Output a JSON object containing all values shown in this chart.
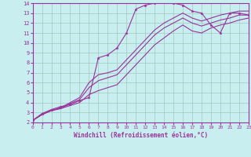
{
  "title": "",
  "xlabel": "Windchill (Refroidissement éolien,°C)",
  "ylabel": "",
  "xlim": [
    0,
    23
  ],
  "ylim": [
    2,
    14
  ],
  "xticks": [
    0,
    1,
    2,
    3,
    4,
    5,
    6,
    7,
    8,
    9,
    10,
    11,
    12,
    13,
    14,
    15,
    16,
    17,
    18,
    19,
    20,
    21,
    22,
    23
  ],
  "yticks": [
    2,
    3,
    4,
    5,
    6,
    7,
    8,
    9,
    10,
    11,
    12,
    13,
    14
  ],
  "bg_color": "#c8eef0",
  "line_color": "#993399",
  "grid_color": "#a0c8c0",
  "line1_x": [
    0,
    1,
    2,
    3,
    4,
    5,
    6,
    7,
    8,
    9,
    10,
    11,
    12,
    13,
    14,
    15,
    16,
    17,
    18,
    19,
    20,
    21,
    22,
    23
  ],
  "line1_y": [
    2.2,
    2.9,
    3.3,
    3.6,
    3.8,
    4.2,
    4.5,
    8.5,
    8.8,
    9.5,
    11.0,
    13.4,
    13.8,
    14.0,
    14.2,
    14.0,
    13.8,
    13.2,
    13.0,
    11.8,
    11.0,
    13.0,
    13.0,
    12.8
  ],
  "line2_x": [
    0,
    1,
    2,
    3,
    4,
    5,
    6,
    7,
    8,
    9,
    10,
    11,
    12,
    13,
    14,
    15,
    16,
    17,
    18,
    19,
    20,
    21,
    22,
    23
  ],
  "line2_y": [
    2.2,
    2.8,
    3.2,
    3.4,
    3.7,
    4.0,
    4.8,
    5.2,
    5.5,
    5.8,
    6.8,
    7.8,
    8.8,
    9.8,
    10.5,
    11.2,
    11.8,
    11.2,
    11.0,
    11.5,
    11.8,
    12.0,
    12.3,
    12.5
  ],
  "line3_x": [
    0,
    1,
    2,
    3,
    4,
    5,
    6,
    7,
    8,
    9,
    10,
    11,
    12,
    13,
    14,
    15,
    16,
    17,
    18,
    19,
    20,
    21,
    22,
    23
  ],
  "line3_y": [
    2.2,
    2.8,
    3.2,
    3.4,
    3.9,
    4.3,
    5.5,
    6.2,
    6.5,
    6.8,
    7.8,
    8.8,
    9.8,
    10.8,
    11.5,
    12.0,
    12.5,
    12.0,
    11.7,
    12.0,
    12.3,
    12.5,
    12.8,
    12.8
  ],
  "line4_x": [
    0,
    1,
    2,
    3,
    4,
    5,
    6,
    7,
    8,
    9,
    10,
    11,
    12,
    13,
    14,
    15,
    16,
    17,
    18,
    19,
    20,
    21,
    22,
    23
  ],
  "line4_y": [
    2.2,
    2.8,
    3.2,
    3.5,
    4.0,
    4.5,
    6.0,
    6.8,
    7.0,
    7.3,
    8.3,
    9.3,
    10.3,
    11.3,
    12.0,
    12.5,
    13.0,
    12.5,
    12.2,
    12.5,
    12.8,
    13.0,
    13.2,
    13.2
  ]
}
